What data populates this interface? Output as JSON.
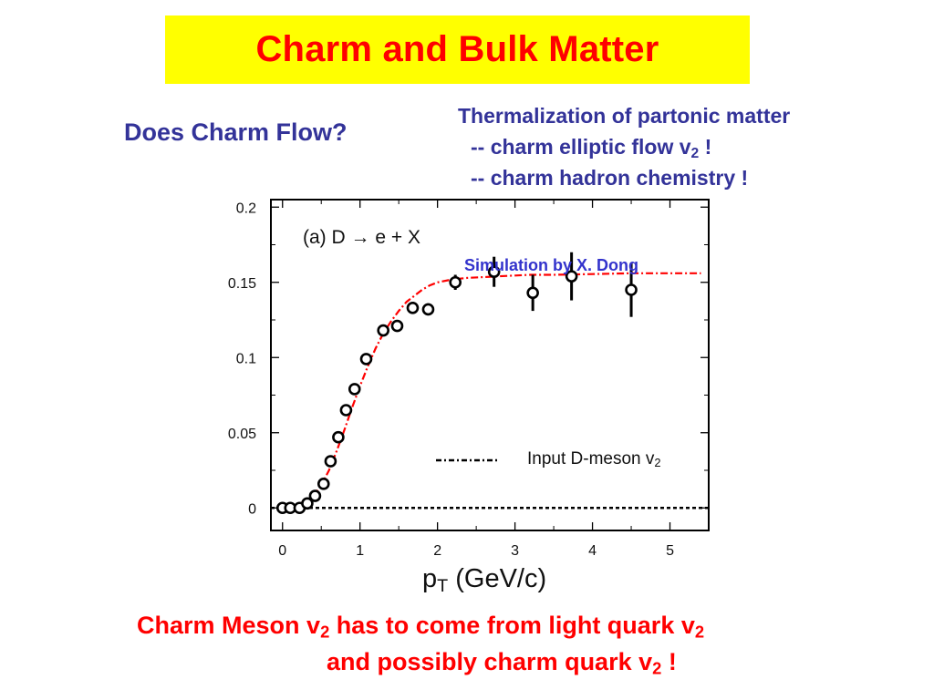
{
  "slide": {
    "title": "Charm and Bulk Matter",
    "question": "Does Charm Flow?",
    "points": {
      "line1": "Thermalization of partonic matter",
      "line2_pre": "-- charm elliptic flow v",
      "line2_sub": "2",
      "line2_post": " !",
      "line3": "-- charm hadron chemistry !"
    },
    "conclusion": {
      "l1_a": "Charm Meson v",
      "l1_sub1": "2",
      "l1_b": " has to come from light quark v",
      "l1_sub2": "2",
      "l2_a": "and possibly charm quark v",
      "l2_sub": "2",
      "l2_b": " !"
    },
    "colors": {
      "title_bg": "#ffff00",
      "title_text": "#ff0000",
      "blue_text": "#333399",
      "curve": "#ff0000"
    }
  },
  "chart_data": {
    "type": "scatter",
    "title": "(a) D → e + X",
    "annotation": "Simulation by X. Dong",
    "xlabel_main": "p",
    "xlabel_sub": "T",
    "xlabel_unit": " (GeV/c)",
    "xlim": [
      -0.15,
      5.5
    ],
    "ylim": [
      -0.015,
      0.205
    ],
    "xticks": [
      0,
      1,
      2,
      3,
      4,
      5
    ],
    "yticks": [
      0,
      0.05,
      0.1,
      0.15,
      0.2
    ],
    "ytick_labels": [
      "0",
      "0.05",
      "0.1",
      "0.15",
      "0.2"
    ],
    "legend": {
      "label_main": "Input D-meson v",
      "label_sub": "2",
      "placement": "lower-right"
    },
    "series": [
      {
        "style": "open-circles",
        "x": [
          0.0,
          0.1,
          0.22,
          0.32,
          0.42,
          0.53,
          0.62,
          0.72,
          0.82,
          0.93,
          1.08,
          1.3,
          1.48,
          1.68,
          1.88,
          2.23,
          2.73,
          3.23,
          3.73,
          4.5
        ],
        "y": [
          0.0,
          0.0,
          0.0,
          0.003,
          0.008,
          0.016,
          0.031,
          0.047,
          0.065,
          0.079,
          0.099,
          0.118,
          0.121,
          0.133,
          0.132,
          0.15,
          0.157,
          0.143,
          0.154,
          0.145
        ],
        "err": [
          0,
          0,
          0,
          0,
          0,
          0,
          0,
          0,
          0,
          0,
          0,
          0,
          0,
          0.004,
          0.004,
          0.005,
          0.01,
          0.012,
          0.016,
          0.018
        ]
      },
      {
        "style": "dash-dot-curve",
        "x": [
          0.0,
          0.2,
          0.4,
          0.5,
          0.6,
          0.7,
          0.8,
          0.9,
          1.0,
          1.1,
          1.2,
          1.3,
          1.4,
          1.5,
          1.6,
          1.7,
          1.8,
          1.9,
          2.0,
          2.2,
          2.4,
          2.6,
          2.8,
          3.0,
          3.2,
          3.5,
          4.0,
          4.5,
          5.0,
          5.4
        ],
        "y": [
          0.0,
          0.002,
          0.008,
          0.015,
          0.025,
          0.038,
          0.052,
          0.067,
          0.081,
          0.094,
          0.106,
          0.116,
          0.124,
          0.131,
          0.137,
          0.141,
          0.145,
          0.148,
          0.15,
          0.152,
          0.153,
          0.1535,
          0.154,
          0.1545,
          0.155,
          0.155,
          0.1555,
          0.156,
          0.156,
          0.156
        ]
      },
      {
        "style": "dotted-baseline",
        "x": [
          -0.15,
          5.5
        ],
        "y": [
          0,
          0
        ]
      }
    ]
  }
}
